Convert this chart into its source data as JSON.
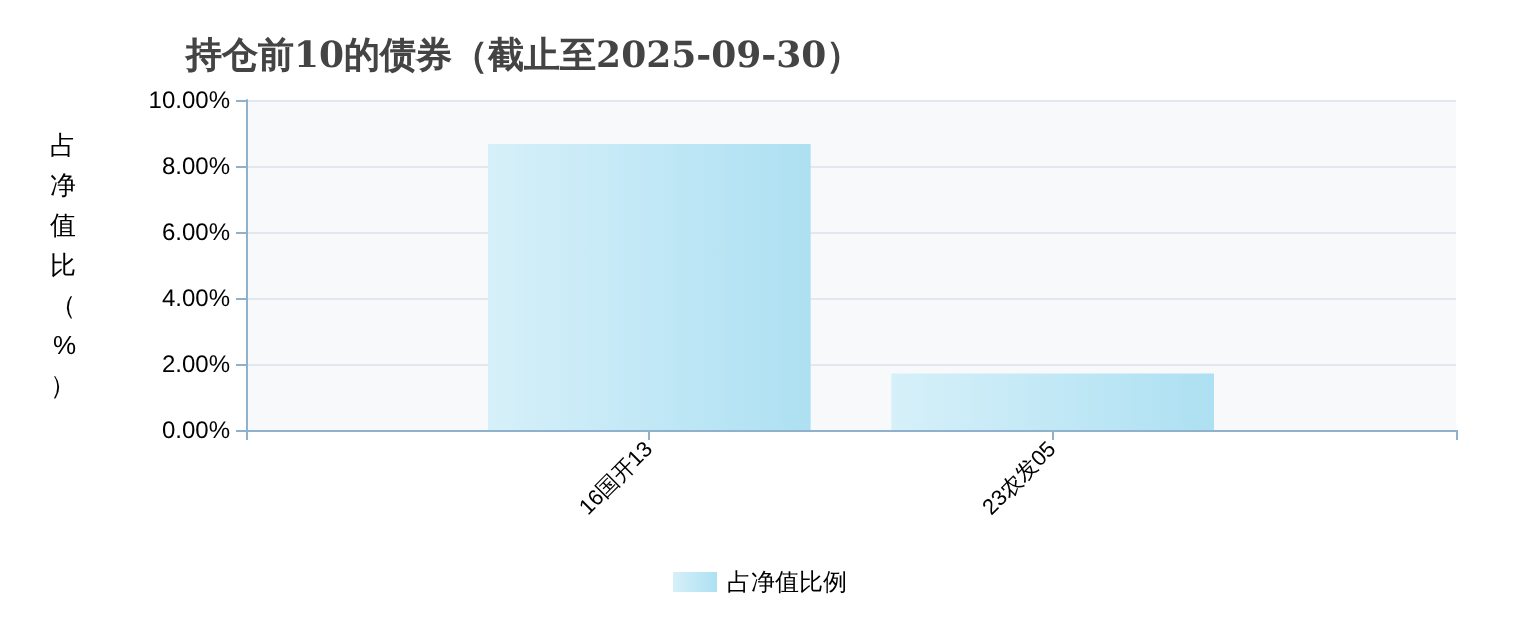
{
  "chart_data": {
    "type": "bar",
    "title": "持仓前10的债券（截止至2025-09-30）",
    "ylabel": "占净值比（%）",
    "categories": [
      null,
      "16国开13",
      "23农发05",
      null
    ],
    "series": [
      {
        "name": "占净值比例",
        "color": "#ade0f2",
        "values": [
          null,
          8.67,
          1.71,
          null
        ]
      }
    ],
    "ylim": [
      0,
      10
    ],
    "yticks": [
      {
        "value": 0,
        "label": "0.00%"
      },
      {
        "value": 2,
        "label": "2.00%"
      },
      {
        "value": 4,
        "label": "4.00%"
      },
      {
        "value": 6,
        "label": "6.00%"
      },
      {
        "value": 8,
        "label": "8.00%"
      },
      {
        "value": 10,
        "label": "10.00%"
      }
    ],
    "grid": "y",
    "legend": "bottom"
  }
}
